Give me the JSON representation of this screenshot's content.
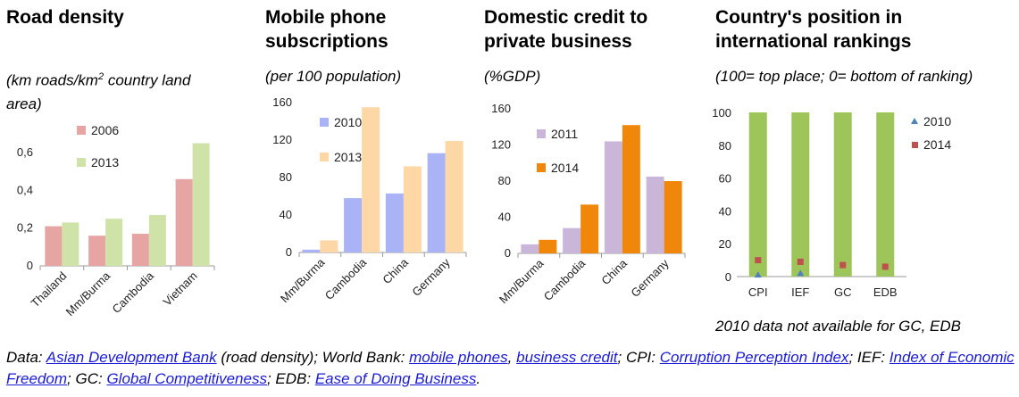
{
  "panels": [
    {
      "title_line1": "Road density",
      "title_line2": "",
      "subtitle_pre": "(km roads/km",
      "subtitle_sup": "2",
      "subtitle_post": " country land area)"
    },
    {
      "title_line1": "Mobile phone",
      "title_line2": "subscriptions",
      "subtitle": "(per 100 population)"
    },
    {
      "title_line1": "Domestic credit to",
      "title_line2": "private business",
      "subtitle": "(%GDP)"
    },
    {
      "title_line1": "Country's position in",
      "title_line2": "international rankings",
      "subtitle": "(100= top place; 0= bottom of ranking)"
    }
  ],
  "chart_data": [
    {
      "type": "bar",
      "categories": [
        "Thailand",
        "Mm/Burma",
        "Cambodia",
        "Vietnam"
      ],
      "series": [
        {
          "name": "2006",
          "values": [
            0.21,
            0.16,
            0.17,
            0.46
          ],
          "color": "#e6a4a2"
        },
        {
          "name": "2013",
          "values": [
            0.23,
            0.25,
            0.27,
            0.65
          ],
          "color": "#cfe3a8"
        }
      ],
      "yticks": [
        "0",
        "0,2",
        "0,4",
        "0,6"
      ],
      "ylim": [
        0,
        0.7
      ],
      "title": "Road density",
      "xlabel": "",
      "ylabel": "km roads/km2 country land area"
    },
    {
      "type": "bar",
      "categories": [
        "Mm/Burma",
        "Cambodia",
        "China",
        "Germany"
      ],
      "series": [
        {
          "name": "2010",
          "values": [
            3,
            58,
            63,
            106
          ],
          "color": "#a9b3f5"
        },
        {
          "name": "2013",
          "values": [
            13,
            155,
            92,
            119
          ],
          "color": "#fdd7a6"
        }
      ],
      "yticks": [
        "0",
        "40",
        "80",
        "120",
        "160"
      ],
      "ylim": [
        0,
        160
      ],
      "title": "Mobile phone subscriptions",
      "xlabel": "",
      "ylabel": "per 100 population"
    },
    {
      "type": "bar",
      "categories": [
        "Mm/Burma",
        "Cambodia",
        "China",
        "Germany"
      ],
      "series": [
        {
          "name": "2011",
          "values": [
            10,
            28,
            124,
            85
          ],
          "color": "#c9b6d9"
        },
        {
          "name": "2014",
          "values": [
            15,
            54,
            142,
            80
          ],
          "color": "#f0870a"
        }
      ],
      "yticks": [
        "0",
        "40",
        "80",
        "120",
        "160"
      ],
      "ylim": [
        0,
        160
      ],
      "title": "Domestic credit to private business",
      "xlabel": "",
      "ylabel": "%GDP"
    },
    {
      "type": "scatter",
      "categories": [
        "CPI",
        "IEF",
        "GC",
        "EDB"
      ],
      "background_bar_value": 100,
      "background_bar_color": "#9dc55a",
      "series": [
        {
          "name": "2010",
          "values": [
            1,
            2,
            null,
            null
          ],
          "color": "#4f81bd",
          "marker": "triangle"
        },
        {
          "name": "2014",
          "values": [
            10,
            9,
            7,
            6
          ],
          "color": "#c0504d",
          "marker": "square"
        }
      ],
      "yticks": [
        "0",
        "20",
        "40",
        "60",
        "80",
        "100"
      ],
      "ylim": [
        0,
        100
      ],
      "title": "Country's position in international rankings",
      "xlabel": "",
      "ylabel": "100= top place; 0= bottom of ranking"
    }
  ],
  "note": "2010 data not available for GC, EDB",
  "footer": {
    "data_label": "Data:",
    "adb": "Asian Development Bank",
    "road_text": "(road density); World Bank:",
    "mobile_link": "mobile phones",
    "sep1": ",",
    "credit_link": "business credit",
    "cpi_label": "; CPI:",
    "cpi_link": "Corruption Perception Index",
    "ief_label": "; IEF:",
    "ief_link": "Index of Economic Freedom",
    "gc_label": "; GC:",
    "gc_link": "Global Competitiveness",
    "edb_label": "; EDB:",
    "edb_link": "Ease of Doing Business",
    "end": "."
  }
}
